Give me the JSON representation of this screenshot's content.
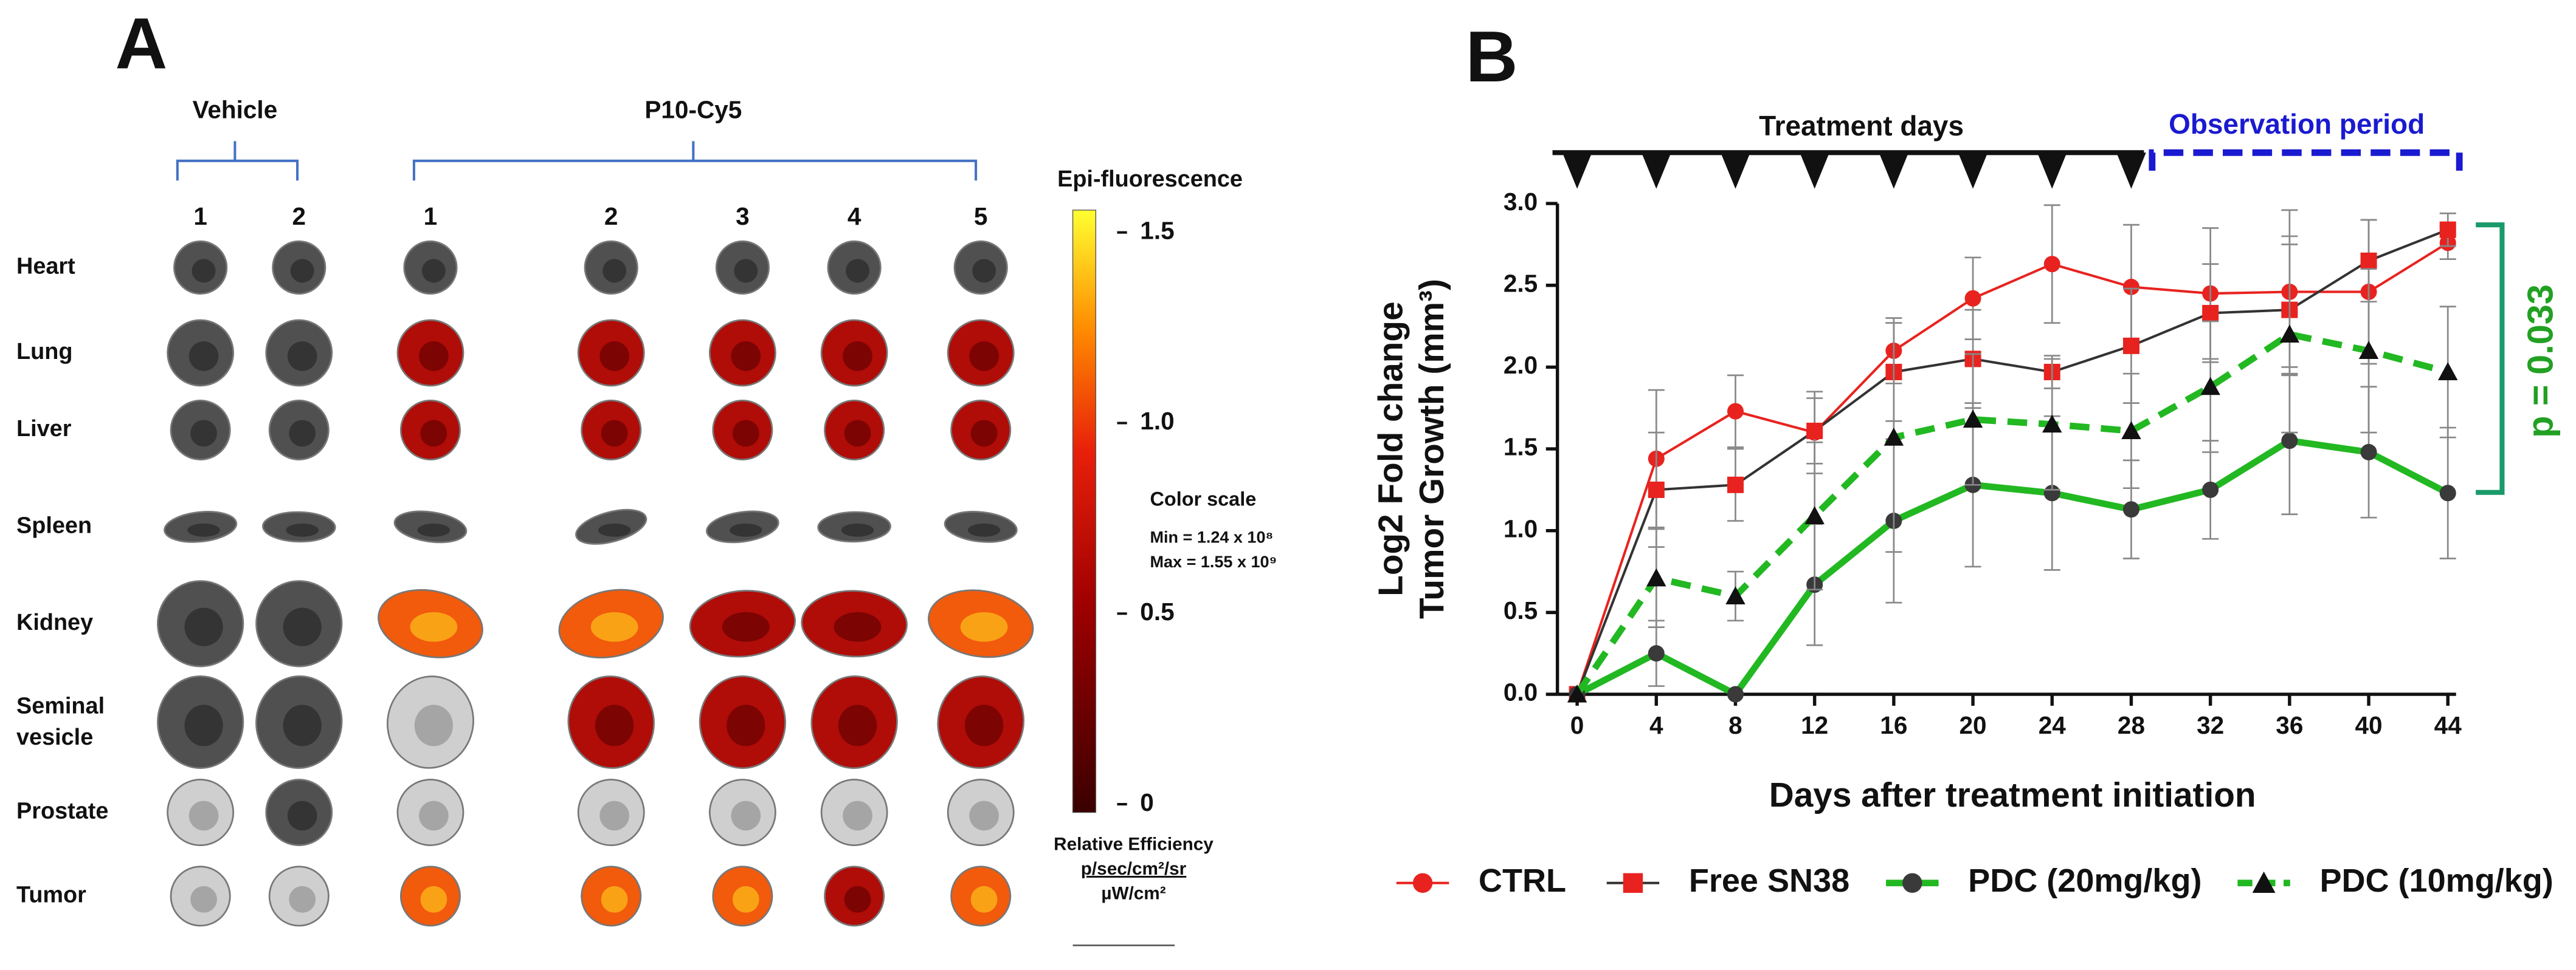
{
  "panel_a": {
    "letter": "A",
    "groups": [
      "Vehicle",
      "P10-Cy5"
    ],
    "columns": [
      "1",
      "2",
      "1",
      "2",
      "3",
      "4",
      "5"
    ],
    "rows": [
      "Heart",
      "Lung",
      "Liver",
      "Spleen",
      "Kidney",
      "Seminal vesicle",
      "Prostate",
      "Tumor"
    ],
    "colorbar": {
      "title": "Epi-fluorescence",
      "clim": [
        0,
        1.55
      ],
      "ticks": [
        {
          "value": 0,
          "label": "0"
        },
        0.5,
        {
          "value": 1.0,
          "label": "1.0"
        },
        1.5
      ],
      "scale_title": "Color scale",
      "min_label": "Min = 1.24  x 10⁸",
      "max_label": "Max = 1.55 x 10⁹",
      "unit_lines": [
        "Relative Efficiency",
        "p/sec/cm²/sr",
        "µW/cm²"
      ]
    }
  },
  "chart_data": {
    "type": "line",
    "letter": "B",
    "xlabel": "Days after treatment initiation",
    "ylabel": [
      "Log2 Fold change",
      "Tumor Growth (mm³)"
    ],
    "x": [
      0,
      4,
      8,
      12,
      16,
      20,
      24,
      28,
      32,
      36,
      40,
      44
    ],
    "xlim": [
      0,
      44
    ],
    "xticks": [
      0,
      4,
      8,
      12,
      16,
      20,
      24,
      28,
      32,
      36,
      40,
      44
    ],
    "ylim": [
      0,
      3
    ],
    "yticks": [
      {
        "value": 0,
        "label": "0.0"
      },
      0.5,
      {
        "value": 1,
        "label": "1.0"
      },
      1.5,
      {
        "value": 2,
        "label": "2.0"
      },
      2.5,
      {
        "value": 3,
        "label": "3.0"
      }
    ],
    "treatment_label": "Treatment days",
    "treatment_days": [
      0,
      4,
      8,
      12,
      16,
      20,
      24,
      28
    ],
    "observation_label": "Observation period",
    "p_label": "p = 0.033",
    "series": [
      {
        "name": "CTRL",
        "color": "#e8231f",
        "marker": "circle",
        "marker_color": "#e8231f",
        "dash": false,
        "width": 1.5,
        "values": [
          0,
          1.44,
          1.73,
          1.6,
          2.1,
          2.42,
          2.63,
          2.49,
          2.45,
          2.46,
          2.46,
          2.76
        ],
        "errors": [
          0,
          0.42,
          0.22,
          0.25,
          0.2,
          0.25,
          0.36,
          0.38,
          0.4,
          0.5,
          0.44,
          0.1
        ]
      },
      {
        "name": "Free SN38",
        "color": "#333333",
        "marker": "square",
        "marker_color": "#e8231f",
        "dash": false,
        "width": 1.5,
        "values": [
          0,
          1.25,
          1.28,
          1.61,
          1.97,
          2.05,
          1.97,
          2.13,
          2.33,
          2.35,
          2.65,
          2.84
        ],
        "errors": [
          0,
          0.35,
          0.22,
          0.2,
          0.3,
          0.3,
          0.1,
          0.35,
          0.3,
          0.4,
          0.25,
          0.1
        ]
      },
      {
        "name": "PDC (20mg/kg)",
        "color": "#22b822",
        "marker": "circle",
        "marker_color": "#3a3a3a",
        "dash": false,
        "width": 4,
        "values": [
          0,
          0.25,
          0,
          0.67,
          1.06,
          1.28,
          1.23,
          1.13,
          1.25,
          1.55,
          1.48,
          1.23
        ],
        "errors": [
          0,
          0.2,
          0,
          0.37,
          0.5,
          0.5,
          0.47,
          0.3,
          0.3,
          0.45,
          0.4,
          0.4
        ]
      },
      {
        "name": "PDC (10mg/kg)",
        "color": "#22b822",
        "marker": "triangle",
        "marker_color": "#111111",
        "dash": true,
        "width": 4,
        "values": [
          0,
          0.71,
          0.6,
          1.09,
          1.57,
          1.68,
          1.65,
          1.61,
          1.88,
          2.2,
          2.1,
          1.97
        ],
        "errors": [
          0,
          0.3,
          0.15,
          0.45,
          0.7,
          0.4,
          0.4,
          0.35,
          0.4,
          0.6,
          0.5,
          0.4
        ]
      }
    ]
  }
}
